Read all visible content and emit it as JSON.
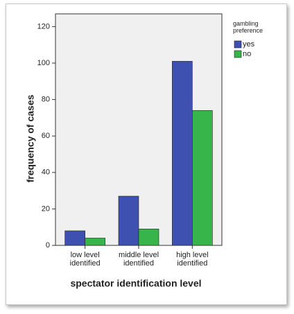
{
  "chart_data": {
    "type": "bar",
    "x_label": "spectator identification level",
    "y_label": "frequency of cases",
    "legend_title": "gambling preference",
    "categories": [
      "low level identified",
      "middle level identified",
      "high level identified"
    ],
    "series": [
      {
        "name": "yes",
        "color": "#3f51b0",
        "values": [
          8,
          27,
          101
        ]
      },
      {
        "name": "no",
        "color": "#37b54a",
        "values": [
          4,
          9,
          74
        ]
      }
    ],
    "ylim": [
      0,
      127
    ],
    "yticks": [
      0,
      20,
      40,
      60,
      80,
      100,
      120
    ],
    "grid": false
  }
}
